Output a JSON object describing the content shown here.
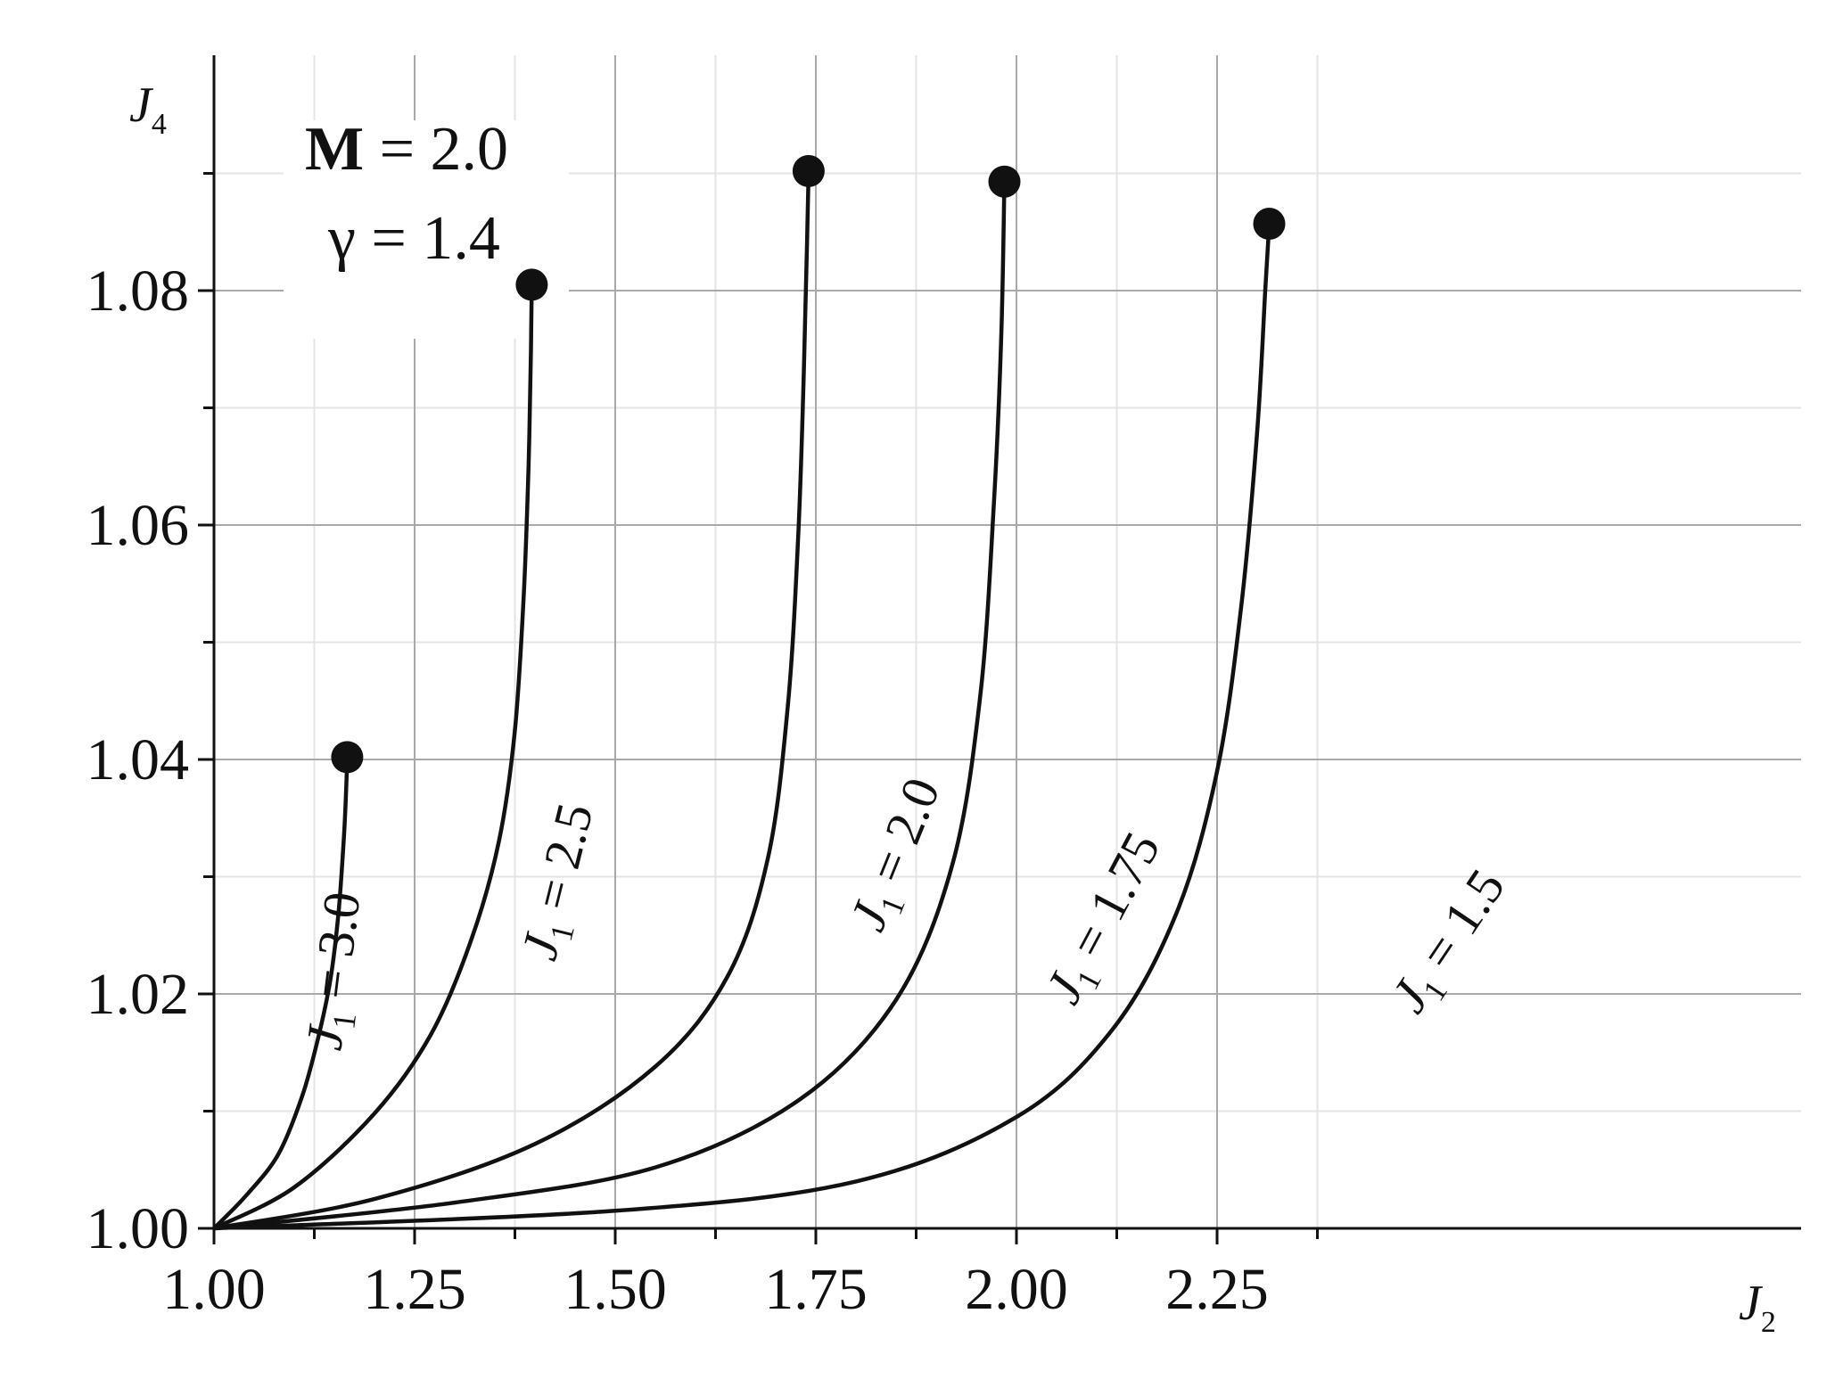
{
  "chart_data": {
    "type": "line",
    "title": "",
    "xlabel": "J",
    "xlabel_sub": "2",
    "ylabel": "J",
    "ylabel_sub": "4",
    "xlim": [
      1.0,
      2.5
    ],
    "ylim": [
      1.0,
      1.1
    ],
    "x_ticks": [
      1.0,
      1.25,
      1.5,
      1.75,
      2.0,
      2.25
    ],
    "x_tick_labels": [
      "1.00",
      "1.25",
      "1.50",
      "1.75",
      "2.00",
      "2.25"
    ],
    "y_ticks": [
      1.0,
      1.02,
      1.04,
      1.06,
      1.08
    ],
    "y_tick_labels": [
      "1.00",
      "1.02",
      "1.04",
      "1.06",
      "1.08"
    ],
    "grid": true,
    "legend": "none",
    "annotations": {
      "mach": {
        "symbol": "M",
        "text": " = 2.0"
      },
      "gamma": {
        "text": "γ = 1.4"
      }
    },
    "series": [
      {
        "label_main": "J",
        "label_sub": "1",
        "label_rest": " = 3.0",
        "end_marker": true,
        "points": [
          [
            1.0,
            1.0
          ],
          [
            1.04,
            1.0028
          ],
          [
            1.08,
            1.0063
          ],
          [
            1.11,
            1.0113
          ],
          [
            1.13,
            1.0163
          ],
          [
            1.145,
            1.0212
          ],
          [
            1.155,
            1.0268
          ],
          [
            1.162,
            1.0335
          ],
          [
            1.165,
            1.038
          ],
          [
            1.166,
            1.0402
          ]
        ]
      },
      {
        "label_main": "J",
        "label_sub": "1",
        "label_rest": " = 2.5",
        "end_marker": true,
        "points": [
          [
            1.0,
            1.0
          ],
          [
            1.1,
            1.0035
          ],
          [
            1.2,
            1.0098
          ],
          [
            1.27,
            1.0165
          ],
          [
            1.32,
            1.0245
          ],
          [
            1.355,
            1.033
          ],
          [
            1.375,
            1.0425
          ],
          [
            1.386,
            1.054
          ],
          [
            1.392,
            1.065
          ],
          [
            1.395,
            1.075
          ],
          [
            1.396,
            1.0805
          ]
        ]
      },
      {
        "label_main": "J",
        "label_sub": "1",
        "label_rest": " = 2.0",
        "end_marker": true,
        "points": [
          [
            1.0,
            1.0
          ],
          [
            1.2,
            1.0025
          ],
          [
            1.4,
            1.0072
          ],
          [
            1.55,
            1.0138
          ],
          [
            1.64,
            1.0215
          ],
          [
            1.69,
            1.0315
          ],
          [
            1.715,
            1.0445
          ],
          [
            1.728,
            1.059
          ],
          [
            1.735,
            1.073
          ],
          [
            1.739,
            1.084
          ],
          [
            1.741,
            1.0902
          ]
        ]
      },
      {
        "label_main": "J",
        "label_sub": "1",
        "label_rest": " = 1.75",
        "end_marker": true,
        "points": [
          [
            1.0,
            1.0
          ],
          [
            1.3,
            1.0022
          ],
          [
            1.55,
            1.0052
          ],
          [
            1.73,
            1.011
          ],
          [
            1.85,
            1.0195
          ],
          [
            1.92,
            1.031
          ],
          [
            1.955,
            1.0455
          ],
          [
            1.972,
            1.062
          ],
          [
            1.981,
            1.076
          ],
          [
            1.985,
            1.0893
          ]
        ]
      },
      {
        "label_main": "J",
        "label_sub": "1",
        "label_rest": " = 1.5",
        "end_marker": true,
        "points": [
          [
            1.0,
            1.0
          ],
          [
            1.5,
            1.0015
          ],
          [
            1.8,
            1.004
          ],
          [
            2.0,
            1.0095
          ],
          [
            2.12,
            1.017
          ],
          [
            2.2,
            1.027
          ],
          [
            2.25,
            1.039
          ],
          [
            2.28,
            1.053
          ],
          [
            2.3,
            1.068
          ],
          [
            2.31,
            1.08
          ],
          [
            2.315,
            1.0857
          ]
        ]
      }
    ]
  }
}
